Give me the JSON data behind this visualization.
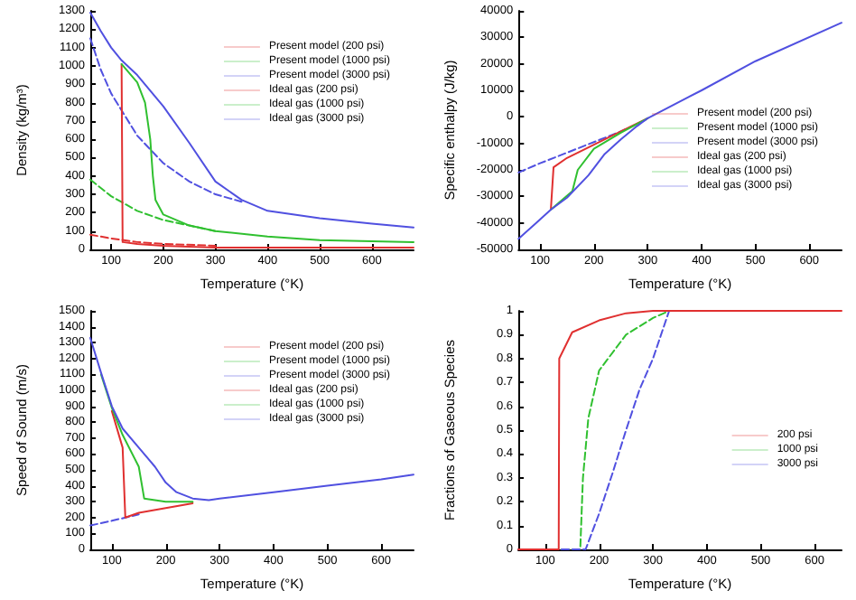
{
  "chart_data": [
    {
      "type": "line",
      "xlabel": "Temperature (°K)",
      "ylabel": "Density (kg/m³)",
      "xlim": [
        60,
        680
      ],
      "xticks": [
        100,
        200,
        300,
        400,
        500,
        600
      ],
      "ylim": [
        0,
        1300
      ],
      "yticks": [
        0,
        100,
        200,
        300,
        400,
        500,
        600,
        700,
        800,
        900,
        1000,
        1100,
        1200,
        1300
      ],
      "grid": false,
      "legend": "top right",
      "marker": "none",
      "series": [
        {
          "name": "Present model (200 psi)",
          "color": "#e03030",
          "line_style": "solid",
          "x": [
            120,
            122,
            150,
            200,
            300,
            400,
            500,
            680
          ],
          "values": [
            1010,
            40,
            30,
            20,
            10,
            10,
            10,
            10
          ]
        },
        {
          "name": "Present model (1000 psi)",
          "color": "#30c030",
          "line_style": "solid",
          "x": [
            120,
            150,
            165,
            175,
            180,
            185,
            200,
            250,
            300,
            400,
            500,
            680
          ],
          "values": [
            1010,
            910,
            800,
            600,
            400,
            270,
            190,
            130,
            100,
            70,
            50,
            40
          ]
        },
        {
          "name": "Present model (3000 psi)",
          "color": "#5050e0",
          "line_style": "solid",
          "x": [
            60,
            80,
            100,
            120,
            150,
            200,
            250,
            300,
            350,
            400,
            500,
            600,
            680
          ],
          "values": [
            1290,
            1190,
            1100,
            1030,
            950,
            780,
            580,
            370,
            270,
            210,
            170,
            140,
            120
          ]
        },
        {
          "name": "Ideal gas (200 psi)",
          "color": "#e03030",
          "line_style": "dashed",
          "x": [
            60,
            100,
            150,
            200,
            300
          ],
          "values": [
            80,
            60,
            40,
            30,
            20
          ]
        },
        {
          "name": "Ideal gas (1000 psi)",
          "color": "#30c030",
          "line_style": "dashed",
          "x": [
            60,
            100,
            150,
            200,
            250,
            300
          ],
          "values": [
            380,
            290,
            210,
            160,
            130,
            100
          ]
        },
        {
          "name": "Ideal gas (3000 psi)",
          "color": "#5050e0",
          "line_style": "dashed",
          "x": [
            60,
            80,
            100,
            150,
            200,
            250,
            300,
            350
          ],
          "values": [
            1150,
            980,
            850,
            620,
            470,
            370,
            300,
            260
          ]
        }
      ]
    },
    {
      "type": "line",
      "xlabel": "Temperature (°K)",
      "ylabel": "Specific enthalpy (J/kg)",
      "xlim": [
        60,
        660
      ],
      "xticks": [
        100,
        200,
        300,
        400,
        500,
        600
      ],
      "ylim": [
        -50000,
        40000
      ],
      "yticks": [
        -50000,
        -40000,
        -30000,
        -20000,
        -10000,
        0,
        10000,
        20000,
        30000,
        40000
      ],
      "grid": false,
      "legend": "right",
      "marker": "none",
      "series": [
        {
          "name": "Present model (200 psi)",
          "color": "#e03030",
          "line_style": "solid",
          "x": [
            120,
            125,
            150,
            200,
            250,
            300
          ],
          "values": [
            -35000,
            -19000,
            -15500,
            -10500,
            -5500,
            -500
          ]
        },
        {
          "name": "Present model (1000 psi)",
          "color": "#30c030",
          "line_style": "solid",
          "x": [
            120,
            160,
            170,
            200,
            250,
            300
          ],
          "values": [
            -35000,
            -28000,
            -20000,
            -12000,
            -6000,
            -500
          ]
        },
        {
          "name": "Present model (3000 psi)",
          "color": "#5050e0",
          "line_style": "solid",
          "x": [
            60,
            90,
            120,
            150,
            190,
            220,
            250,
            280,
            300,
            400,
            500,
            660
          ],
          "values": [
            -46000,
            -40500,
            -35000,
            -30500,
            -22000,
            -14000,
            -8500,
            -3500,
            -500,
            10000,
            21000,
            35500
          ]
        },
        {
          "name": "Ideal gas (200 psi)",
          "color": "#e03030",
          "line_style": "dashed"
        },
        {
          "name": "Ideal gas (1000 psi)",
          "color": "#30c030",
          "line_style": "dashed"
        },
        {
          "name": "Ideal gas (3000 psi)",
          "color": "#5050e0",
          "line_style": "dashed",
          "x": [
            60,
            100,
            150,
            200,
            250,
            300
          ],
          "values": [
            -21000,
            -17500,
            -13500,
            -9500,
            -5500,
            -800
          ]
        }
      ]
    },
    {
      "type": "line",
      "xlabel": "Temperature (°K)",
      "ylabel": "Speed of Sound (m/s)",
      "xlim": [
        60,
        660
      ],
      "xticks": [
        100,
        200,
        300,
        400,
        500,
        600
      ],
      "ylim": [
        0,
        1500
      ],
      "yticks": [
        0,
        100,
        200,
        300,
        400,
        500,
        600,
        700,
        800,
        900,
        1000,
        1100,
        1200,
        1300,
        1400,
        1500
      ],
      "grid": false,
      "legend": "top right",
      "marker": "none",
      "series": [
        {
          "name": "Present model (200 psi)",
          "color": "#e03030",
          "line_style": "solid",
          "x": [
            100,
            120,
            125,
            150,
            200,
            250
          ],
          "values": [
            870,
            640,
            200,
            230,
            260,
            290
          ]
        },
        {
          "name": "Present model (1000 psi)",
          "color": "#30c030",
          "line_style": "solid",
          "x": [
            80,
            100,
            120,
            150,
            160,
            200,
            250
          ],
          "values": [
            1100,
            890,
            720,
            520,
            320,
            300,
            300
          ]
        },
        {
          "name": "Present model (3000 psi)",
          "color": "#5050e0",
          "line_style": "solid",
          "x": [
            60,
            80,
            100,
            120,
            150,
            180,
            200,
            220,
            250,
            280,
            300,
            400,
            500,
            600,
            660
          ],
          "values": [
            1330,
            1110,
            900,
            760,
            640,
            520,
            420,
            360,
            320,
            310,
            320,
            360,
            400,
            440,
            470
          ]
        },
        {
          "name": "Ideal gas (200 psi)",
          "color": "#e03030",
          "line_style": "dashed"
        },
        {
          "name": "Ideal gas (1000 psi)",
          "color": "#30c030",
          "line_style": "dashed"
        },
        {
          "name": "Ideal gas (3000 psi)",
          "color": "#5050e0",
          "line_style": "dashed",
          "x": [
            60,
            100,
            150
          ],
          "values": [
            150,
            180,
            220
          ]
        }
      ]
    },
    {
      "type": "line",
      "xlabel": "Temperature (°K)",
      "ylabel": "Fractions of Gaseous Species",
      "xlim": [
        50,
        650
      ],
      "xticks": [
        100,
        200,
        300,
        400,
        500,
        600
      ],
      "ylim": [
        0,
        1
      ],
      "yticks": [
        0,
        0.1,
        0.2,
        0.3,
        0.4,
        0.5,
        0.6,
        0.7,
        0.8,
        0.9,
        1
      ],
      "grid": false,
      "legend": "right",
      "marker": "none",
      "series": [
        {
          "name": "200 psi",
          "color": "#e03030",
          "line_style": "solid",
          "x": [
            50,
            125,
            126,
            150,
            200,
            250,
            300,
            650
          ],
          "values": [
            0,
            0,
            0.8,
            0.91,
            0.96,
            0.99,
            1,
            1
          ]
        },
        {
          "name": "1000 psi",
          "color": "#30c030",
          "line_style": "dashed",
          "x": [
            50,
            165,
            170,
            180,
            200,
            250,
            300,
            330
          ],
          "values": [
            0,
            0,
            0.3,
            0.55,
            0.75,
            0.9,
            0.97,
            1
          ]
        },
        {
          "name": "3000 psi",
          "color": "#5050e0",
          "line_style": "dashed",
          "x": [
            50,
            175,
            200,
            225,
            250,
            275,
            300,
            330
          ],
          "values": [
            0,
            0,
            0.15,
            0.32,
            0.5,
            0.67,
            0.8,
            1
          ]
        }
      ]
    }
  ]
}
